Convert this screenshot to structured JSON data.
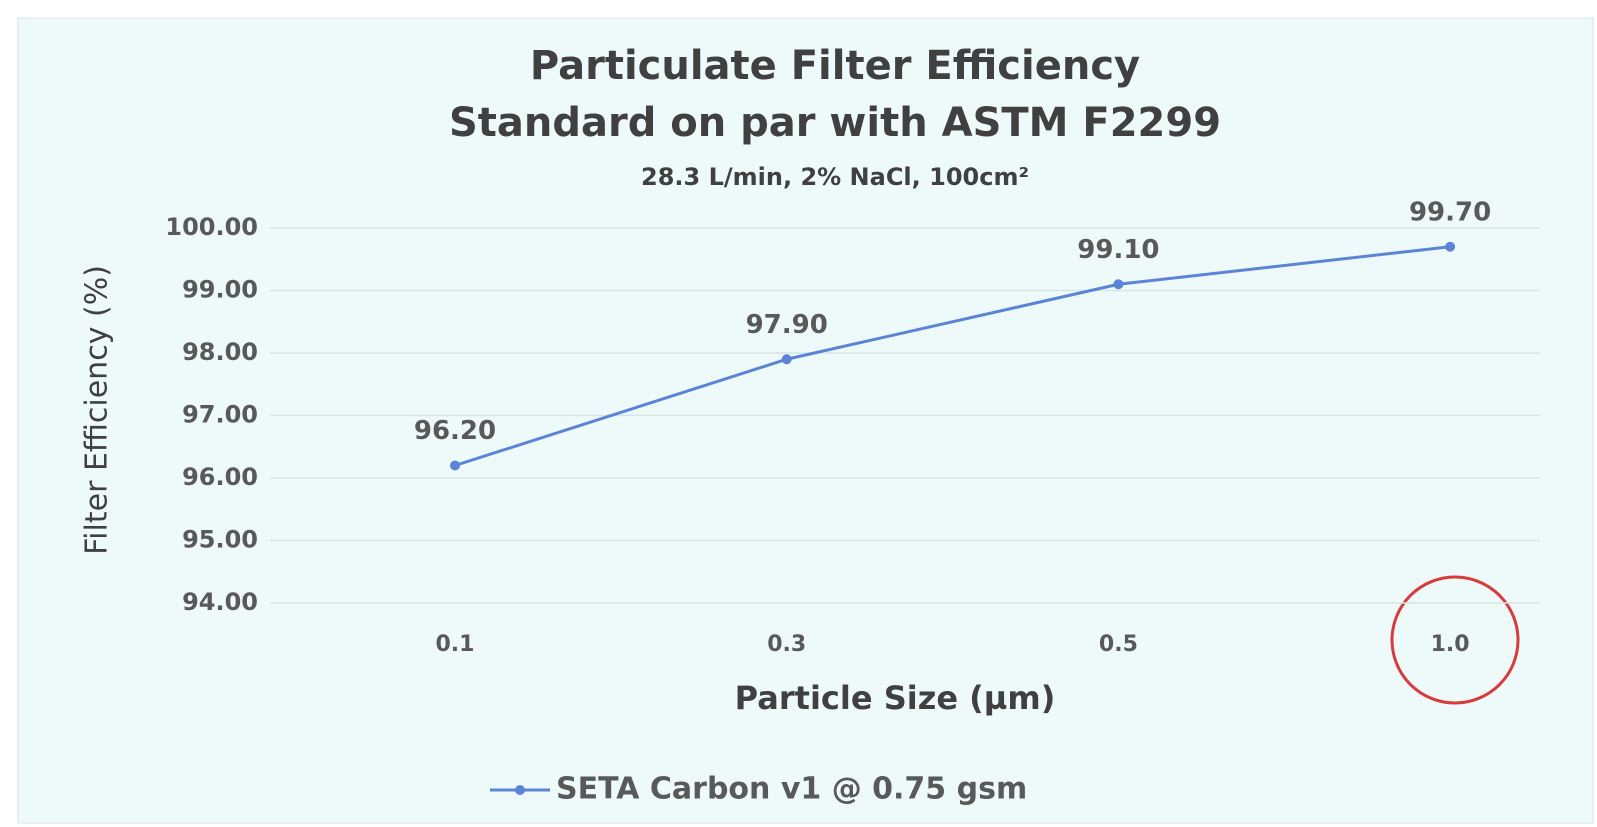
{
  "chart_data": {
    "type": "line",
    "title": [
      "Particulate Filter Efficiency",
      "Standard on par with ASTM F2299"
    ],
    "subtitle": "28.3 L/min, 2% NaCl, 100cm²",
    "x_label": "Particle Size (µm)",
    "y_label": "Filter Efficiency (%)",
    "categories": [
      "0.1",
      "0.3",
      "0.5",
      "1.0"
    ],
    "series": [
      {
        "name": "SETA Carbon v1 @ 0.75 gsm",
        "color": "#5b84d6",
        "values": [
          96.2,
          97.9,
          99.1,
          99.7
        ],
        "value_labels": [
          "96.20",
          "97.90",
          "99.10",
          "99.70"
        ]
      }
    ],
    "ylim": [
      94,
      100
    ],
    "yticks": [
      {
        "value": 94,
        "label": "94.00"
      },
      {
        "value": 95,
        "label": "95.00"
      },
      {
        "value": 96,
        "label": "96.00"
      },
      {
        "value": 97,
        "label": "97.00"
      },
      {
        "value": 98,
        "label": "98.00"
      },
      {
        "value": 99,
        "label": "99.00"
      },
      {
        "value": 100,
        "label": "100.00"
      }
    ],
    "grid": true,
    "legend": "bottom"
  }
}
